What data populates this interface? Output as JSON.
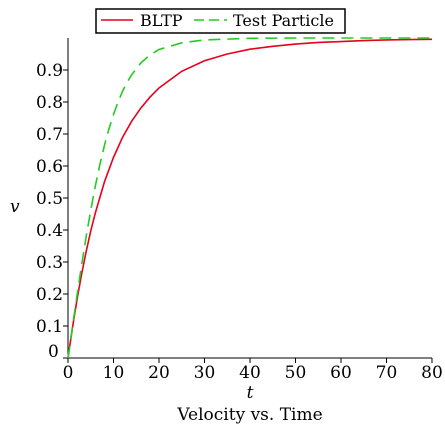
{
  "chart_data": {
    "type": "line",
    "title": "Velocity vs. Time",
    "xlabel": "t",
    "ylabel": "v",
    "xlim": [
      0,
      80
    ],
    "ylim": [
      0,
      1
    ],
    "x_ticks": [
      "0",
      "10",
      "20",
      "30",
      "40",
      "50",
      "60",
      "70",
      "80"
    ],
    "y_ticks": [
      "0",
      "0.1",
      "0.2",
      "0.3",
      "0.4",
      "0.5",
      "0.6",
      "0.7",
      "0.8",
      "0.9"
    ],
    "grid": false,
    "legend_position": "top-center",
    "series": [
      {
        "name": "BLTP",
        "color": "#e8001c",
        "style": "solid",
        "x": [
          0,
          1,
          2,
          3,
          4,
          5,
          6,
          8,
          10,
          12,
          14,
          16,
          18,
          20,
          25,
          30,
          35,
          40,
          45,
          50,
          55,
          60,
          65,
          70,
          75,
          80
        ],
        "y": [
          0,
          0.096,
          0.184,
          0.263,
          0.333,
          0.397,
          0.453,
          0.55,
          0.627,
          0.69,
          0.74,
          0.781,
          0.815,
          0.844,
          0.896,
          0.929,
          0.95,
          0.965,
          0.974,
          0.981,
          0.986,
          0.989,
          0.992,
          0.994,
          0.995,
          0.996
        ]
      },
      {
        "name": "Test Particle",
        "color": "#22cc22",
        "style": "dashed",
        "x": [
          0,
          1,
          2,
          3,
          4,
          5,
          6,
          7,
          8,
          9,
          10,
          11,
          12,
          13,
          14,
          16,
          18,
          20,
          25,
          30,
          40,
          50,
          60,
          70,
          80
        ],
        "y": [
          0,
          0.1,
          0.197,
          0.291,
          0.38,
          0.462,
          0.537,
          0.604,
          0.664,
          0.716,
          0.761,
          0.8,
          0.834,
          0.862,
          0.885,
          0.922,
          0.947,
          0.964,
          0.985,
          0.994,
          0.999,
          1.0,
          1.0,
          1.0,
          1.0
        ]
      }
    ]
  }
}
